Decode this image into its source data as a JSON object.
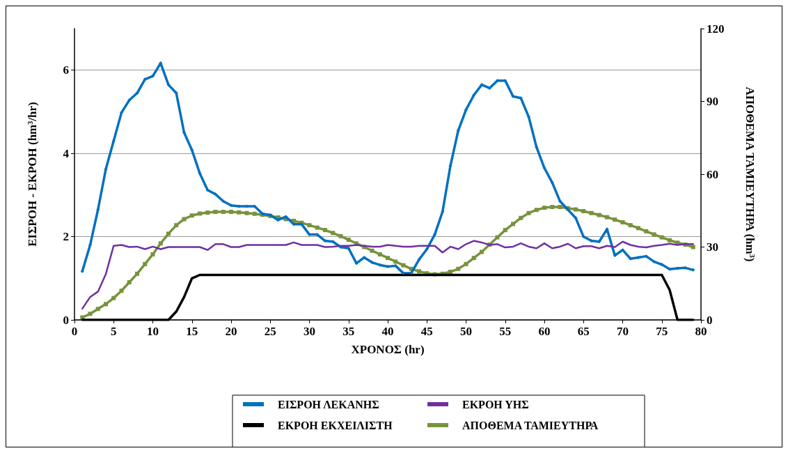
{
  "chart_data": {
    "type": "line",
    "xlabel": "ΧΡΟΝΟΣ (hr)",
    "ylabel": "ΕΙΣΡΟΗ - ΕΚΡΟΗ (hm³/hr)",
    "y2label": "ΑΠΟΘΕΜΑ ΤΑΜΙΕΥΤΗΡΑ (hm³)",
    "x": [
      1,
      2,
      3,
      4,
      5,
      6,
      7,
      8,
      9,
      10,
      11,
      12,
      13,
      14,
      15,
      16,
      17,
      18,
      19,
      20,
      21,
      22,
      23,
      24,
      25,
      26,
      27,
      28,
      29,
      30,
      31,
      32,
      33,
      34,
      35,
      36,
      37,
      38,
      39,
      40,
      41,
      42,
      43,
      44,
      45,
      46,
      47,
      48,
      49,
      50,
      51,
      52,
      53,
      54,
      55,
      56,
      57,
      58,
      59,
      60,
      61,
      62,
      63,
      64,
      65,
      66,
      67,
      68,
      69,
      70,
      71,
      72,
      73,
      74,
      75,
      76,
      77,
      78,
      79
    ],
    "xlim": [
      0,
      80
    ],
    "xticks": [
      0,
      5,
      10,
      15,
      20,
      25,
      30,
      35,
      40,
      45,
      50,
      55,
      60,
      65,
      70,
      75,
      80
    ],
    "ylim": [
      0,
      7
    ],
    "yticks": [
      0,
      2,
      4,
      6
    ],
    "y2lim": [
      0,
      120
    ],
    "y2ticks": [
      0,
      30,
      60,
      90,
      120
    ],
    "grid": "y",
    "legend": "bottom",
    "line_style": "solid",
    "series": [
      {
        "name": "ΕΙΣΡΟΗ ΛΕΚΑΝΗΣ",
        "color": "#0070c0",
        "marker": "diamond",
        "values": [
          1.17,
          1.8,
          2.65,
          3.62,
          4.3,
          4.98,
          5.28,
          5.45,
          5.78,
          5.86,
          6.17,
          5.65,
          5.45,
          4.5,
          4.08,
          3.52,
          3.12,
          3.02,
          2.85,
          2.75,
          2.73,
          2.73,
          2.73,
          2.55,
          2.52,
          2.4,
          2.48,
          2.3,
          2.3,
          2.05,
          2.05,
          1.9,
          1.88,
          1.75,
          1.72,
          1.36,
          1.5,
          1.38,
          1.32,
          1.28,
          1.3,
          1.12,
          1.12,
          1.45,
          1.7,
          2.05,
          2.6,
          3.7,
          4.55,
          5.05,
          5.4,
          5.65,
          5.57,
          5.75,
          5.75,
          5.37,
          5.33,
          4.88,
          4.15,
          3.65,
          3.3,
          2.85,
          2.65,
          2.45,
          2.0,
          1.9,
          1.88,
          2.18,
          1.55,
          1.68,
          1.47,
          1.5,
          1.53,
          1.4,
          1.33,
          1.22,
          1.24,
          1.25,
          1.2
        ]
      },
      {
        "name": "ΕΚΡΟΗ ΥΗΣ",
        "color": "#7030a0",
        "marker": "none",
        "values": [
          0.27,
          0.55,
          0.68,
          1.1,
          1.78,
          1.8,
          1.75,
          1.76,
          1.7,
          1.76,
          1.7,
          1.75,
          1.75,
          1.75,
          1.75,
          1.75,
          1.68,
          1.82,
          1.82,
          1.75,
          1.75,
          1.8,
          1.8,
          1.8,
          1.8,
          1.8,
          1.8,
          1.86,
          1.8,
          1.8,
          1.8,
          1.75,
          1.76,
          1.78,
          1.78,
          1.8,
          1.78,
          1.76,
          1.76,
          1.8,
          1.78,
          1.76,
          1.76,
          1.78,
          1.78,
          1.78,
          1.62,
          1.76,
          1.7,
          1.82,
          1.9,
          1.86,
          1.8,
          1.82,
          1.74,
          1.76,
          1.84,
          1.76,
          1.72,
          1.84,
          1.72,
          1.76,
          1.83,
          1.72,
          1.77,
          1.77,
          1.72,
          1.78,
          1.75,
          1.88,
          1.8,
          1.76,
          1.74,
          1.78,
          1.8,
          1.83,
          1.8,
          1.82,
          1.82
        ]
      },
      {
        "name": "ΕΚΡΟΗ ΕΚΧΕΙΛΙΣΤΗ",
        "color": "#000000",
        "marker": "none",
        "values": [
          0,
          0,
          0,
          0,
          0,
          0,
          0,
          0,
          0,
          0,
          0,
          0,
          0.2,
          0.55,
          1.0,
          1.08,
          1.08,
          1.08,
          1.08,
          1.08,
          1.08,
          1.08,
          1.08,
          1.08,
          1.08,
          1.08,
          1.08,
          1.08,
          1.08,
          1.08,
          1.08,
          1.08,
          1.08,
          1.08,
          1.08,
          1.08,
          1.08,
          1.08,
          1.08,
          1.08,
          1.08,
          1.08,
          1.08,
          1.08,
          1.08,
          1.08,
          1.08,
          1.08,
          1.08,
          1.08,
          1.08,
          1.08,
          1.08,
          1.08,
          1.08,
          1.08,
          1.08,
          1.08,
          1.08,
          1.08,
          1.08,
          1.08,
          1.08,
          1.08,
          1.08,
          1.08,
          1.08,
          1.08,
          1.08,
          1.08,
          1.08,
          1.08,
          1.08,
          1.08,
          1.08,
          0.72,
          0,
          0,
          0
        ]
      },
      {
        "name": "ΑΠΟΘΕΜΑ ΤΑΜΙΕΥΤΗΡΑ",
        "color": "#77933c",
        "marker": "square",
        "axis": "y2",
        "values": [
          1,
          2.5,
          4.5,
          6.5,
          9,
          12,
          15.5,
          19,
          23,
          27,
          31.5,
          35.5,
          39,
          41.5,
          43,
          43.8,
          44.2,
          44.5,
          44.5,
          44.5,
          44.3,
          44,
          43.7,
          43.3,
          42.8,
          42.2,
          41.5,
          40.8,
          40,
          39,
          38,
          37,
          35.8,
          34.5,
          33,
          31.5,
          30,
          28.5,
          27,
          25.5,
          24,
          22.5,
          21,
          20,
          19.2,
          18.8,
          19,
          19.8,
          21,
          23,
          25.5,
          28,
          31,
          34,
          37,
          39.5,
          42,
          44,
          45.3,
          46.2,
          46.5,
          46.5,
          46,
          45.5,
          44.8,
          44,
          43.2,
          42.3,
          41.3,
          40.2,
          39,
          37.8,
          36.5,
          35.2,
          34,
          32.8,
          31.8,
          31,
          30
        ]
      }
    ]
  }
}
